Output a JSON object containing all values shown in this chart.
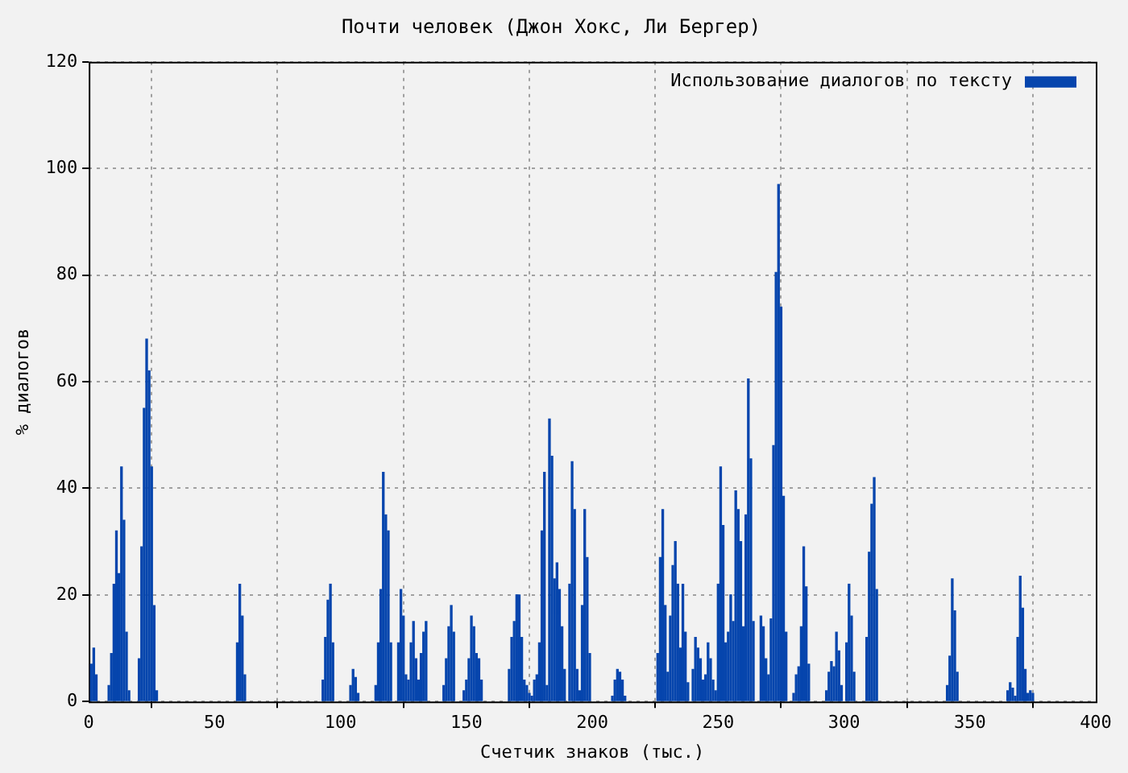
{
  "chart_data": {
    "type": "bar",
    "title": "Почти человек (Джон Хокс, Ли Бергер)",
    "xlabel": "Счетчик знаков (тыс.)",
    "ylabel": "% диалогов",
    "x": [
      1,
      2,
      3,
      8,
      9,
      10,
      11,
      12,
      13,
      14,
      15,
      16,
      20,
      21,
      22,
      23,
      24,
      25,
      26,
      27,
      59,
      60,
      61,
      62,
      93,
      94,
      95,
      96,
      97,
      104,
      105,
      106,
      107,
      114,
      115,
      116,
      117,
      118,
      119,
      120,
      123,
      124,
      125,
      126,
      127,
      128,
      129,
      130,
      131,
      132,
      133,
      134,
      141,
      142,
      143,
      144,
      145,
      149,
      150,
      151,
      152,
      153,
      154,
      155,
      156,
      167,
      168,
      169,
      170,
      171,
      172,
      173,
      174,
      175,
      176,
      177,
      178,
      179,
      180,
      181,
      182,
      183,
      184,
      185,
      186,
      187,
      188,
      189,
      191,
      192,
      193,
      194,
      195,
      196,
      197,
      198,
      199,
      208,
      209,
      210,
      211,
      212,
      213,
      226,
      227,
      228,
      229,
      230,
      231,
      232,
      233,
      234,
      235,
      236,
      237,
      238,
      240,
      241,
      242,
      243,
      244,
      245,
      246,
      247,
      248,
      249,
      250,
      251,
      252,
      253,
      254,
      255,
      256,
      257,
      258,
      259,
      260,
      261,
      262,
      263,
      264,
      267,
      268,
      269,
      270,
      271,
      272,
      273,
      274,
      275,
      276,
      277,
      280,
      281,
      282,
      283,
      284,
      285,
      286,
      293,
      294,
      295,
      296,
      297,
      298,
      299,
      301,
      302,
      303,
      304,
      309,
      310,
      311,
      312,
      313,
      341,
      342,
      343,
      344,
      345,
      365,
      366,
      367,
      368,
      369,
      370,
      371,
      372,
      373,
      374,
      375
    ],
    "series": [
      {
        "name": "Использование диалогов по тексту",
        "color": "#0645ad",
        "values": [
          7,
          10,
          5,
          3,
          9,
          22,
          32,
          24,
          44,
          34,
          13,
          2,
          8,
          29,
          55,
          68,
          62,
          44,
          18,
          2,
          11,
          22,
          16,
          5,
          4,
          12,
          19,
          22,
          11,
          3,
          6,
          4.5,
          1.5,
          3,
          11,
          21,
          43,
          35,
          32,
          11,
          11,
          21,
          16,
          5,
          4,
          11,
          15,
          8,
          4,
          9,
          13,
          15,
          3,
          8,
          14,
          18,
          13,
          2,
          4,
          8,
          16,
          14,
          9,
          8,
          4,
          6,
          12,
          15,
          20,
          20,
          12,
          4,
          3,
          1.5,
          1,
          4,
          5,
          11,
          32,
          43,
          3,
          53,
          46,
          23,
          26,
          21,
          14,
          6,
          22,
          45,
          36,
          6,
          2,
          18,
          36,
          27,
          9,
          1,
          4,
          6,
          5.5,
          4,
          1,
          9,
          27,
          36,
          18,
          5.5,
          16,
          25.5,
          30,
          22,
          10,
          22,
          13,
          3.5,
          6,
          12,
          10,
          8,
          4,
          5,
          11,
          8,
          4,
          2,
          22,
          44,
          33,
          11,
          13,
          20,
          15,
          39.5,
          36,
          30,
          14,
          35,
          60.5,
          45.5,
          15,
          16,
          14,
          8,
          5,
          15.5,
          48,
          80.5,
          97,
          74,
          38.5,
          13,
          1.5,
          5,
          6.5,
          14,
          29,
          21.5,
          7,
          2,
          5.5,
          7.5,
          6.5,
          13,
          9.5,
          3,
          11,
          22,
          16,
          5.5,
          12,
          28,
          37,
          42,
          21,
          3,
          8.5,
          23,
          17,
          5.5,
          2,
          3.5,
          2.5,
          1,
          12,
          23.5,
          17.5,
          6,
          1.5,
          2,
          1.5
        ]
      }
    ],
    "xlim": [
      0,
      400
    ],
    "xticks": [
      0,
      50,
      100,
      150,
      200,
      250,
      300,
      350,
      400
    ],
    "ylim": [
      0,
      120
    ],
    "yticks": [
      0,
      20,
      40,
      60,
      80,
      100,
      120
    ],
    "grid": true,
    "legend": "top right"
  }
}
